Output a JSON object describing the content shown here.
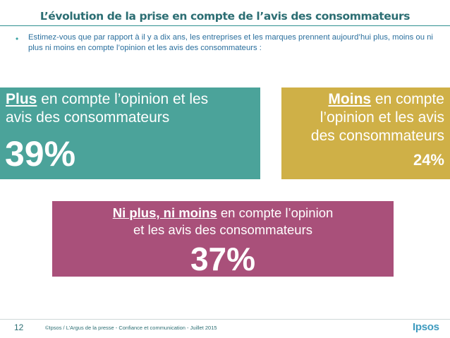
{
  "title": "L’évolution de la prise en compte de l’avis des consommateurs",
  "bullet": "•",
  "question": "Estimez-vous que par rapport à il y a dix ans, les entreprises et les marques prennent aujourd’hui plus, moins ou ni plus ni moins en compte l’opinion et les avis des consommateurs :",
  "plus": {
    "keyword": "Plus",
    "line1_rest": " en compte l’opinion et les",
    "line2": "avis des consommateurs",
    "percent": "39%"
  },
  "moins": {
    "keyword": "Moins",
    "line1_rest": " en compte",
    "line2": "l’opinion et les avis",
    "line3": "des consommateurs",
    "percent": "24%"
  },
  "ni": {
    "keyword": "Ni plus, ni moins",
    "line1_rest": " en compte l’opinion",
    "line2": "et les avis des consommateurs",
    "percent": "37%"
  },
  "colors": {
    "plus": "#4ba39a",
    "moins": "#cfb047",
    "ni": "#a9507a",
    "title": "#2c6e73",
    "question": "#2a6f9d"
  },
  "footer": {
    "page_number": "12",
    "copyright": "©Ipsos / L’Argus de la presse - Confiance et communication - Juillet 2015",
    "logo_text": "Ipsos"
  }
}
